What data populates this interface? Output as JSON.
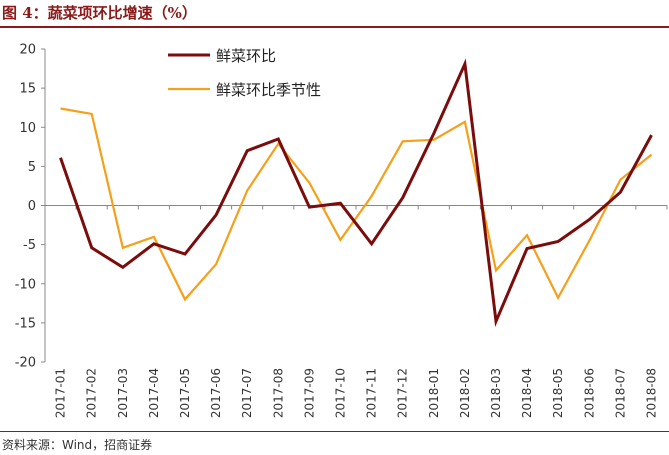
{
  "title": "图 4：蔬菜项环比增速（%）",
  "source": "资料来源：Wind，招商证券",
  "colors": {
    "accent": "#8b1a1a",
    "series1": "#7b0c0c",
    "series2": "#f5a01a"
  },
  "chart_data": {
    "type": "line",
    "title": "蔬菜项环比增速（%）",
    "xlabel": "",
    "ylabel": "",
    "ylim": [
      -20,
      20
    ],
    "yticks": [
      20,
      15,
      10,
      5,
      0,
      -5,
      -10,
      -15,
      -20
    ],
    "categories": [
      "2017-01",
      "2017-02",
      "2017-03",
      "2017-04",
      "2017-05",
      "2017-06",
      "2017-07",
      "2017-08",
      "2017-09",
      "2017-10",
      "2017-11",
      "2017-12",
      "2018-01",
      "2018-02",
      "2018-03",
      "2018-04",
      "2018-05",
      "2018-06",
      "2018-07",
      "2018-08"
    ],
    "series": [
      {
        "name": "鲜菜环比",
        "color": "#7b0c0c",
        "values": [
          6.1,
          -5.4,
          -7.9,
          -4.9,
          -6.2,
          -1.2,
          7.0,
          8.5,
          -0.2,
          0.3,
          -4.9,
          1.0,
          9.2,
          18.1,
          -14.8,
          -5.5,
          -4.6,
          -1.8,
          1.7,
          9.0
        ]
      },
      {
        "name": "鲜菜环比季节性",
        "color": "#f5a01a",
        "values": [
          12.4,
          11.7,
          -5.4,
          -4.0,
          -12.0,
          -7.5,
          1.9,
          7.9,
          2.9,
          -4.4,
          1.2,
          8.2,
          8.4,
          10.7,
          -8.3,
          -3.8,
          -11.8,
          -4.5,
          3.3,
          6.5
        ]
      }
    ],
    "legend_position": "top-center"
  }
}
